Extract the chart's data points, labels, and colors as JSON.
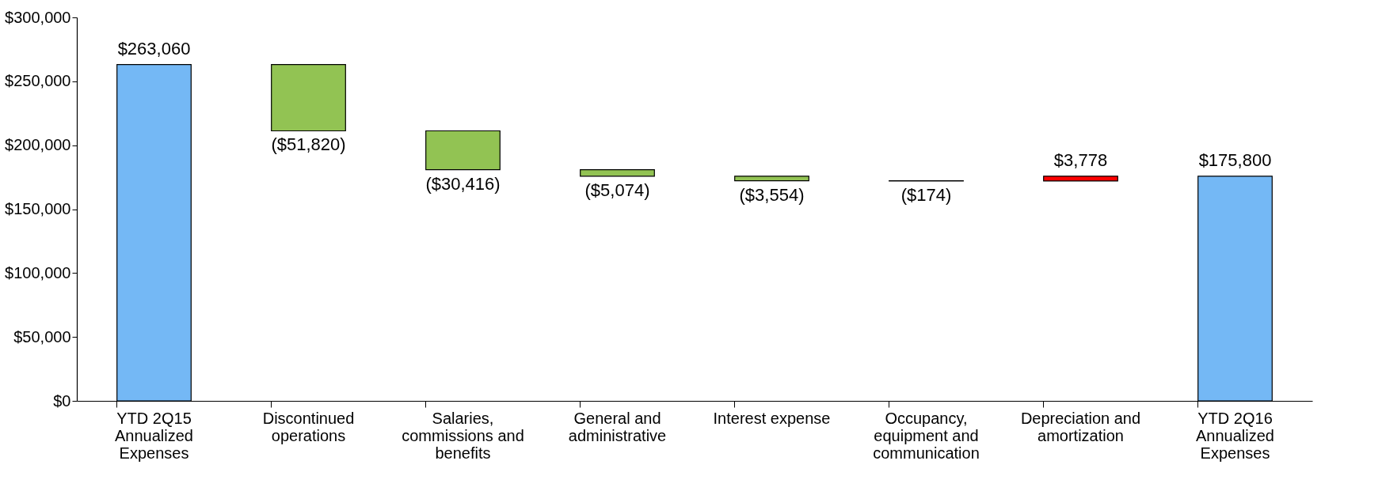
{
  "chart_data": {
    "type": "bar",
    "categories": [
      "YTD 2Q15 Annualized Expenses",
      "Discontinued operations",
      "Salaries, commissions and benefits",
      "General and administrative",
      "Interest expense",
      "Occupancy, equipment and communication",
      "Depreciation and amortization",
      "YTD 2Q16 Annualized Expenses"
    ],
    "values": [
      263060,
      -51820,
      -30416,
      -5074,
      -3554,
      -174,
      3778,
      175800
    ],
    "base": [
      0,
      263060,
      211240,
      180824,
      175750,
      172196,
      172022,
      0
    ],
    "colors": [
      "#74b8f5",
      "#92c353",
      "#92c353",
      "#92c353",
      "#92c353",
      "#92c353",
      "#ff0000",
      "#74b8f5"
    ],
    "value_labels": [
      "$263,060",
      "($51,820)",
      "($30,416)",
      "($5,074)",
      "($3,554)",
      "($174)",
      "$3,778",
      "$175,800"
    ],
    "ylim": [
      0,
      300000
    ],
    "yticks": [
      {
        "value": 0,
        "label": "$0"
      },
      {
        "value": 50000,
        "label": "$50,000"
      },
      {
        "value": 100000,
        "label": "$100,000"
      },
      {
        "value": 150000,
        "label": "$150,000"
      },
      {
        "value": 200000,
        "label": "$200,000"
      },
      {
        "value": 250000,
        "label": "$250,000"
      },
      {
        "value": 300000,
        "label": "$300,000"
      }
    ],
    "grid": false
  }
}
